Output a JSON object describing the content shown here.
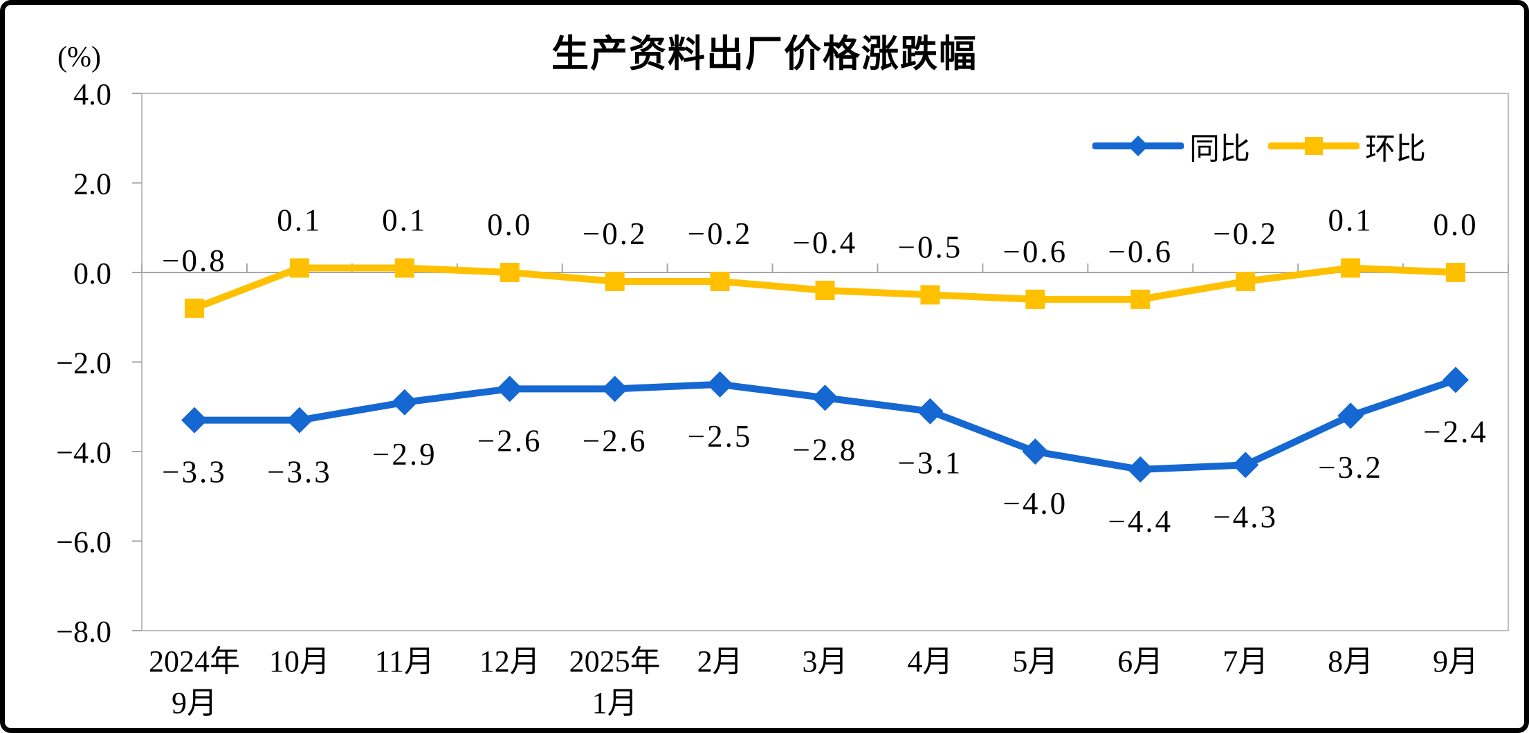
{
  "window": {
    "background": "#FFFFFF",
    "frame_border_color": "#000000"
  },
  "chart_data": {
    "type": "line",
    "title": "生产资料出厂价格涨跌幅",
    "y_unit_label": "(%)",
    "categories": [
      "2024年\n9月",
      "10月",
      "11月",
      "12月",
      "2025年\n1月",
      "2月",
      "3月",
      "4月",
      "5月",
      "6月",
      "7月",
      "8月",
      "9月"
    ],
    "series": [
      {
        "name": "同比",
        "color": "#1567D2",
        "marker": "diamond",
        "label_position": "below",
        "values": [
          -3.3,
          -3.3,
          -2.9,
          -2.6,
          -2.6,
          -2.5,
          -2.8,
          -3.1,
          -4.0,
          -4.4,
          -4.3,
          -3.2,
          -2.4
        ]
      },
      {
        "name": "环比",
        "color": "#FFC000",
        "marker": "square",
        "label_position": "above",
        "values": [
          -0.8,
          0.1,
          0.1,
          0.0,
          -0.2,
          -0.2,
          -0.4,
          -0.5,
          -0.6,
          -0.6,
          -0.2,
          0.1,
          0.0
        ]
      }
    ],
    "ylim": [
      -8.0,
      4.0
    ],
    "yticks": [
      4.0,
      2.0,
      0.0,
      -2.0,
      -4.0,
      -6.0,
      -8.0
    ],
    "grid": false,
    "legend_position": "top-right",
    "axes": {
      "border_color": "#BFBFBF",
      "zero_line_color": "#A6A6A6",
      "tick_color": "#A6A6A6",
      "label_color": "#000000"
    }
  }
}
